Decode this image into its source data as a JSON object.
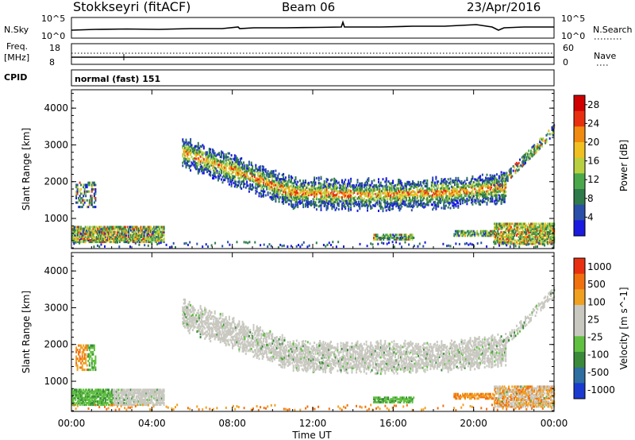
{
  "header": {
    "station": "Stokkseyri (fitACF)",
    "beam": "Beam 06",
    "date": "23/Apr/2016"
  },
  "noise_panel": {
    "left_label": "N.Sky",
    "right_label": "N.Search",
    "left_ticks": [
      "10^5",
      "10^0"
    ],
    "right_ticks": [
      "10^5",
      "10^0"
    ]
  },
  "freq_panel": {
    "left_label_1": "Freq.",
    "left_label_2": "[MHz]",
    "left_ticks": [
      "18",
      "8"
    ],
    "right_label": "Nave",
    "right_ticks": [
      "60",
      "0"
    ]
  },
  "cpid_panel": {
    "label": "CPID",
    "text": "normal (fast) 151"
  },
  "chart_data": [
    {
      "type": "heatmap",
      "title": "",
      "quantity": "Power",
      "ylabel": "Slant Range [km]",
      "xlabel": "Time UT",
      "ylim": [
        180,
        4500
      ],
      "x_ticks": [
        "00:00",
        "04:00",
        "08:00",
        "12:00",
        "16:00",
        "20:00",
        "00:00"
      ],
      "y_ticks": [
        1000,
        2000,
        3000,
        4000
      ],
      "colorbar": {
        "label": "Power [dB]",
        "ticks": [
          4,
          8,
          12,
          16,
          20,
          24,
          28
        ],
        "range": [
          0,
          30
        ],
        "colors": [
          "#1a1ae0",
          "#2a4fa8",
          "#2e7a4a",
          "#4aa84a",
          "#b8d040",
          "#f0c020",
          "#f08a10",
          "#e83010",
          "#d00000"
        ]
      },
      "features": [
        {
          "name": "near-range band",
          "t_start": 0.0,
          "t_end": 3.5,
          "range_min": 300,
          "range_max": 900
        },
        {
          "name": "main arc",
          "t_start": 5.5,
          "t_end": 21.5,
          "range_min": 1500,
          "range_max": 2800
        },
        {
          "name": "late band",
          "t_start": 21.0,
          "t_end": 24.0,
          "range_min": 300,
          "range_max": 800
        }
      ]
    },
    {
      "type": "heatmap",
      "title": "",
      "quantity": "Velocity",
      "ylabel": "Slant Range [km]",
      "xlabel": "Time UT",
      "ylim": [
        180,
        4500
      ],
      "x_ticks": [
        "00:00",
        "04:00",
        "08:00",
        "12:00",
        "16:00",
        "20:00",
        "00:00"
      ],
      "y_ticks": [
        1000,
        2000,
        3000,
        4000
      ],
      "colorbar": {
        "label": "Velocity [m s^-1]",
        "ticks": [
          1000,
          500,
          100,
          25,
          -25,
          -100,
          -500,
          -1000
        ],
        "colors": [
          "#1a3ad0",
          "#2e6ea0",
          "#3a8a3a",
          "#60c040",
          "#c8c8c0",
          "#c8c8c0",
          "#f0a020",
          "#f07010",
          "#e83010"
        ]
      },
      "features": [
        {
          "name": "ground scatter arc",
          "t_start": 5.5,
          "t_end": 21.5,
          "range_min": 1500,
          "range_max": 2800
        },
        {
          "name": "near-range band",
          "t_start": 0.0,
          "t_end": 4.5,
          "range_min": 300,
          "range_max": 800
        }
      ]
    }
  ]
}
